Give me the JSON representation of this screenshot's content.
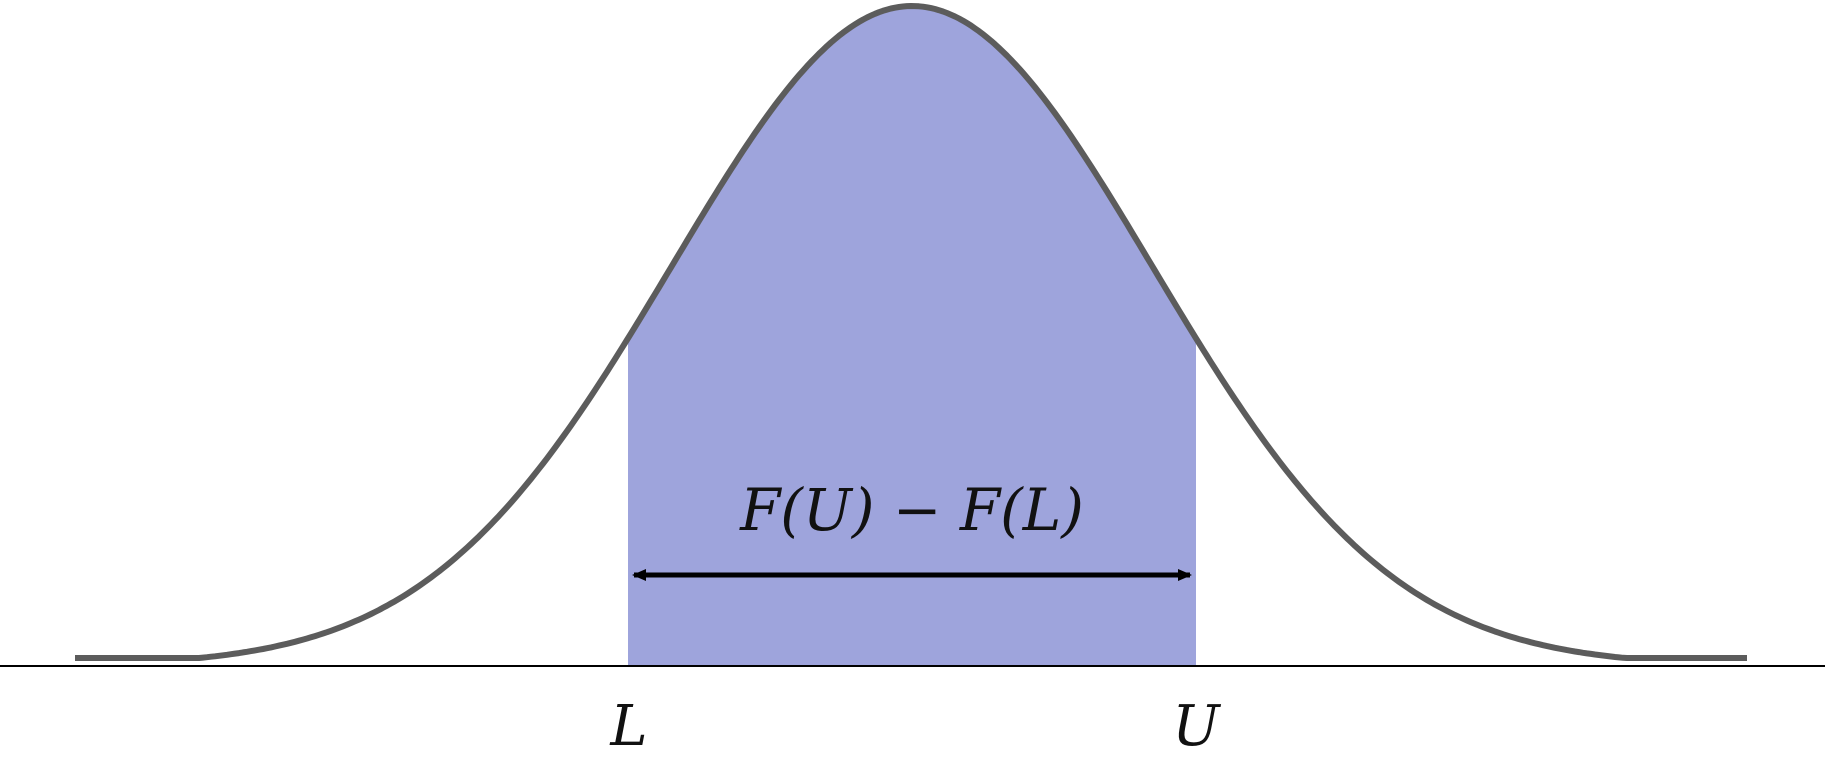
{
  "diagram": {
    "interval_label": "F(U) − F(L)",
    "lower_bound_label": "L",
    "upper_bound_label": "U"
  },
  "colors": {
    "curve": "#5c5c5c",
    "shaded_region": "#9ea4dc",
    "axis": "#000000",
    "arrow": "#000000",
    "background": "#ffffff"
  }
}
